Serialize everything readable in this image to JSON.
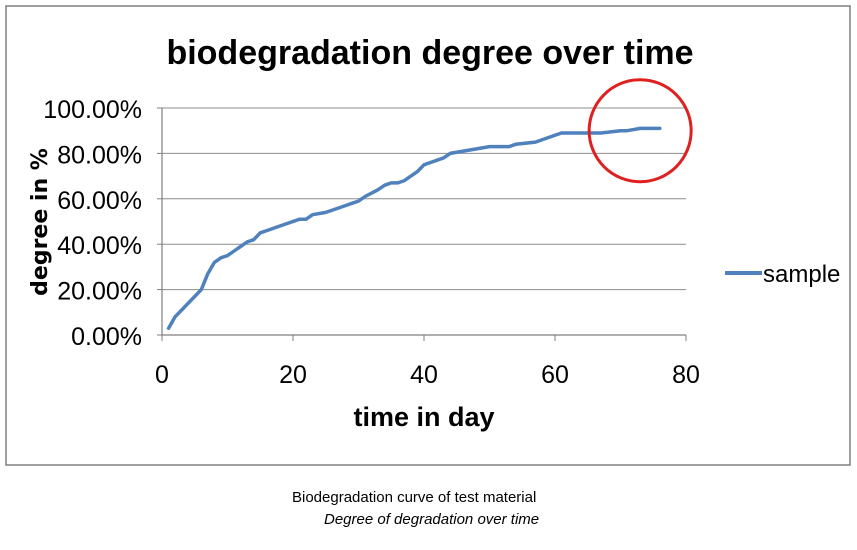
{
  "chart_data": {
    "type": "line",
    "title": "biodegradation  degree over time",
    "xlabel": "time in day",
    "ylabel": "degree in %",
    "xlim": [
      0,
      80
    ],
    "ylim": [
      0,
      1
    ],
    "x_ticks": [
      0,
      20,
      40,
      60,
      80
    ],
    "x_tick_labels": [
      "0",
      "20",
      "40",
      "60",
      "80"
    ],
    "y_ticks": [
      0,
      0.2,
      0.4,
      0.6,
      0.8,
      1.0
    ],
    "y_tick_labels": [
      "0.00%",
      "20.00%",
      "40.00%",
      "60.00%",
      "80.00%",
      "100.00%"
    ],
    "grid": "horizontal",
    "legend_position": "right",
    "series": [
      {
        "name": "sample",
        "color": "#4F81BD",
        "x": [
          1,
          2,
          3,
          4,
          5,
          6,
          7,
          8,
          9,
          10,
          11,
          12,
          13,
          14,
          15,
          16,
          18,
          20,
          21,
          22,
          23,
          25,
          27,
          28,
          29,
          30,
          31,
          33,
          34,
          35,
          36,
          37,
          38,
          39,
          40,
          41,
          42,
          43,
          44,
          46,
          48,
          50,
          53,
          54,
          57,
          59,
          61,
          64,
          67,
          70,
          71,
          73,
          76
        ],
        "y": [
          0.03,
          0.08,
          0.11,
          0.14,
          0.17,
          0.2,
          0.27,
          0.32,
          0.34,
          0.35,
          0.37,
          0.39,
          0.41,
          0.42,
          0.45,
          0.46,
          0.48,
          0.5,
          0.51,
          0.51,
          0.53,
          0.54,
          0.56,
          0.57,
          0.58,
          0.59,
          0.61,
          0.64,
          0.66,
          0.67,
          0.67,
          0.68,
          0.7,
          0.72,
          0.75,
          0.76,
          0.77,
          0.78,
          0.8,
          0.81,
          0.82,
          0.83,
          0.83,
          0.84,
          0.85,
          0.87,
          0.89,
          0.89,
          0.89,
          0.9,
          0.9,
          0.91,
          0.91
        ]
      }
    ],
    "annotations": [
      {
        "type": "circle",
        "color": "#E02020",
        "center": [
          73,
          0.9
        ],
        "description": "highlight of plateau"
      }
    ]
  },
  "caption": {
    "line1": "Biodegradation curve of test material",
    "line2": "Degree of degradation over time"
  }
}
